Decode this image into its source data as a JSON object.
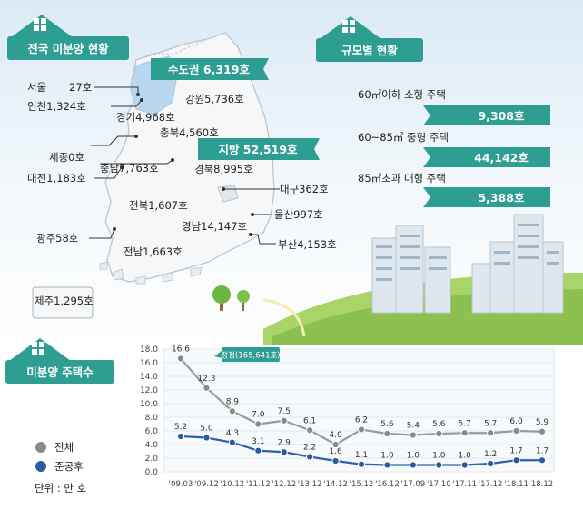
{
  "sections": {
    "map_title": "전국 미분양 현황",
    "size_title": "규모별 현황",
    "chart_title": "미분양 주택수"
  },
  "regions": {
    "capital": "수도권 6,319호",
    "local": "지방 52,519호",
    "seoul": "서울",
    "seoul_value": "27호",
    "incheon": "인천1,324호",
    "gyeonggi": "경기4,968호",
    "gangwon": "강원5,736호",
    "chungbuk": "충북4,560호",
    "sejong": "세종0호",
    "chungnam": "충남7,763호",
    "daejeon": "대전1,183호",
    "gyeongbuk": "경북8,995호",
    "daegu": "대구362호",
    "jeonbuk": "전북1,607호",
    "ulsan": "울산997호",
    "gyeongnam": "경남14,147호",
    "gwangju": "광주58호",
    "busan": "부산4,153호",
    "jeonnam": "전남1,663호",
    "jeju": "제주1,295호"
  },
  "sizes": [
    {
      "label": "60㎡이하 소형 주택",
      "value": "9,308호"
    },
    {
      "label": "60~85㎡ 중형 주택",
      "value": "44,142호"
    },
    {
      "label": "85㎡초과 대형 주택",
      "value": "5,388호"
    }
  ],
  "legend": {
    "total": "전체",
    "completed": "준공후",
    "unit": "단위 : 만 호"
  },
  "peak_label": "정점(165,641호)",
  "colors": {
    "teal": "#2e9e93",
    "blue": "#2f60a8",
    "gray": "#8a8a8a",
    "navy": "#2a5aa0"
  },
  "chart_data": {
    "type": "line",
    "x": [
      "'09.03",
      "'09.12",
      "'10.12",
      "'11.12",
      "'12.12",
      "'13.12",
      "'14.12",
      "'15.12",
      "'16.12",
      "'17.09",
      "'17.10",
      "'17.11",
      "'17.12",
      "'18.11",
      "18.12"
    ],
    "ylim": [
      0,
      18
    ],
    "yticks": [
      "0.0",
      "2.0",
      "4.0",
      "6.0",
      "8.0",
      "10.0",
      "12.0",
      "14.0",
      "16.0",
      "18.0"
    ],
    "grid": true,
    "series": [
      {
        "name": "전체",
        "values": [
          16.6,
          12.3,
          8.9,
          7.0,
          7.5,
          6.1,
          4.0,
          6.2,
          5.6,
          5.4,
          5.6,
          5.7,
          5.7,
          6.0,
          5.9
        ],
        "labels": [
          "16.6",
          "12.3",
          "8.9",
          "7.0",
          "7.5",
          "6.1",
          "4.0",
          "6.2",
          "5.6",
          "5.4",
          "5.6",
          "5.7",
          "5.7",
          "6.0",
          "5.9"
        ]
      },
      {
        "name": "준공후",
        "values": [
          5.2,
          5.0,
          4.3,
          3.1,
          2.9,
          2.2,
          1.6,
          1.1,
          1.0,
          1.0,
          1.0,
          1.0,
          1.2,
          1.7,
          1.7
        ],
        "labels": [
          "5.2",
          "5.0",
          "4.3",
          "3.1",
          "2.9",
          "2.2",
          "1.6",
          "1.1",
          "1.0",
          "1.0",
          "1.0",
          "1.0",
          "1.2",
          "1.7",
          "1.7"
        ]
      }
    ]
  }
}
